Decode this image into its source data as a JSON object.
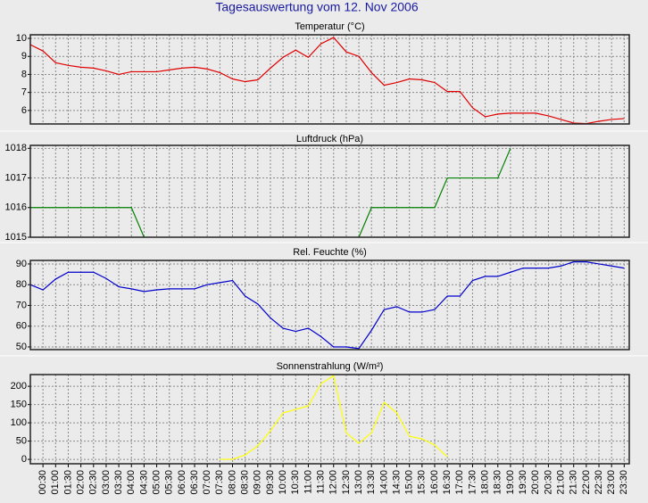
{
  "title": "Tagesauswertung vom 12. Nov 2006",
  "chart_data": [
    {
      "type": "line",
      "title": "Temperatur (°C)",
      "color": "#e00000",
      "grid": true,
      "x": [
        0,
        0.5,
        1,
        1.5,
        2,
        2.5,
        3,
        3.5,
        4,
        4.5,
        5,
        5.5,
        6,
        6.5,
        7,
        7.5,
        8,
        8.5,
        9,
        9.5,
        10,
        10.5,
        11,
        11.5,
        12,
        12.5,
        13,
        13.5,
        14,
        14.5,
        15,
        15.5,
        16,
        16.5,
        17,
        17.5,
        18,
        18.5,
        19,
        19.5,
        20,
        20.5,
        21,
        21.5,
        22,
        22.5,
        23,
        23.5
      ],
      "values": [
        9.65,
        9.3,
        8.65,
        8.5,
        8.4,
        8.35,
        8.2,
        8.0,
        8.15,
        8.15,
        8.15,
        8.25,
        8.35,
        8.4,
        8.3,
        8.1,
        7.75,
        7.6,
        7.7,
        8.35,
        8.95,
        9.35,
        8.95,
        9.7,
        10.05,
        9.25,
        9.0,
        8.1,
        7.4,
        7.55,
        7.75,
        7.7,
        7.55,
        7.05,
        7.05,
        6.15,
        5.65,
        5.8,
        5.85,
        5.85,
        5.85,
        5.7,
        5.5,
        5.3,
        5.27,
        5.4,
        5.5,
        5.55
      ],
      "xlim": [
        0,
        23.7
      ],
      "ylim": [
        5.25,
        10.2
      ],
      "yticks": [
        6,
        7,
        8,
        9,
        10
      ]
    },
    {
      "type": "line",
      "title": "Luftdruck (hPa)",
      "color": "#008000",
      "grid": true,
      "x": [
        0,
        0.5,
        1,
        1.5,
        2,
        2.5,
        3,
        3.5,
        4,
        4.5,
        5,
        5.5,
        6,
        6.5,
        7,
        7.5,
        8,
        8.5,
        9,
        9.5,
        10,
        10.5,
        11,
        11.5,
        12,
        12.5,
        13,
        13.5,
        14,
        14.5,
        15,
        15.5,
        16,
        16.5,
        17,
        17.5,
        18,
        18.5,
        19,
        19.5,
        20,
        20.5,
        21,
        21.5,
        22,
        22.5,
        23,
        23.5
      ],
      "values": [
        1016,
        1016,
        1016,
        1016,
        1016,
        1016,
        1016,
        1016,
        1016,
        1015,
        null,
        null,
        null,
        null,
        null,
        null,
        null,
        null,
        null,
        null,
        null,
        null,
        null,
        null,
        null,
        null,
        1015,
        1016,
        1016,
        1016,
        1016,
        1016,
        1016,
        1017,
        1017,
        1017,
        1017,
        1017,
        1018,
        null,
        null,
        null,
        null,
        null,
        null,
        null,
        null,
        null
      ],
      "xlim": [
        0,
        23.7
      ],
      "ylim": [
        1015,
        1018.1
      ],
      "yticks": [
        1015,
        1016,
        1017,
        1018
      ]
    },
    {
      "type": "line",
      "title": "Rel. Feuchte (%)",
      "color": "#0000cc",
      "grid": true,
      "x": [
        0,
        0.5,
        1,
        1.5,
        2,
        2.5,
        3,
        3.5,
        4,
        4.5,
        5,
        5.5,
        6,
        6.5,
        7,
        7.5,
        8,
        8.5,
        9,
        9.5,
        10,
        10.5,
        11,
        11.5,
        12,
        12.5,
        13,
        13.5,
        14,
        14.5,
        15,
        15.5,
        16,
        16.5,
        17,
        17.5,
        18,
        18.5,
        19,
        19.5,
        20,
        20.5,
        21,
        21.5,
        22,
        22.5,
        23,
        23.5
      ],
      "values": [
        80,
        77.5,
        82.7,
        86,
        86,
        86,
        83,
        79,
        78,
        76.7,
        77.5,
        78,
        78,
        78,
        80,
        81,
        82,
        74.5,
        70.7,
        64,
        59,
        57.5,
        59,
        55,
        50,
        50,
        49.2,
        58,
        68,
        69.4,
        66.8,
        66.8,
        68,
        74.5,
        74.5,
        82,
        84,
        84,
        86,
        88,
        88,
        88,
        89,
        91,
        91,
        90,
        89,
        88
      ],
      "xlim": [
        0,
        23.7
      ],
      "ylim": [
        48.7,
        91.7
      ],
      "yticks": [
        50,
        60,
        70,
        80,
        90
      ]
    },
    {
      "type": "line",
      "title": "Sonnenstrahlung (W/m²)",
      "color": "#ffff00",
      "grid": true,
      "x": [
        0,
        0.5,
        1,
        1.5,
        2,
        2.5,
        3,
        3.5,
        4,
        4.5,
        5,
        5.5,
        6,
        6.5,
        7,
        7.5,
        8,
        8.5,
        9,
        9.5,
        10,
        10.5,
        11,
        11.5,
        12,
        12.5,
        13,
        13.5,
        14,
        14.5,
        15,
        15.5,
        16,
        16.5,
        17,
        17.5,
        18,
        18.5,
        19,
        19.5,
        20,
        20.5,
        21,
        21.5,
        22,
        22.5,
        23,
        23.5
      ],
      "values": [
        null,
        null,
        null,
        null,
        null,
        null,
        null,
        null,
        null,
        null,
        null,
        null,
        null,
        null,
        null,
        0,
        0,
        12,
        37,
        78,
        127,
        137,
        146,
        207,
        229,
        73,
        44,
        73,
        156,
        127,
        63,
        56,
        39,
        7,
        null,
        null,
        null,
        null,
        null,
        null,
        null,
        null,
        null,
        null,
        null,
        null,
        null,
        null
      ],
      "xlim": [
        0,
        23.7
      ],
      "ylim": [
        -12,
        232
      ],
      "yticks": [
        0,
        50,
        100,
        150,
        200
      ],
      "xticks": [
        {
          "value": 0.5,
          "label": "00:30"
        },
        {
          "value": 1,
          "label": "01:00"
        },
        {
          "value": 1.5,
          "label": "01:30"
        },
        {
          "value": 2,
          "label": "02:00"
        },
        {
          "value": 2.5,
          "label": "02:30"
        },
        {
          "value": 3,
          "label": "03:00"
        },
        {
          "value": 3.5,
          "label": "03:30"
        },
        {
          "value": 4,
          "label": "04:00"
        },
        {
          "value": 4.5,
          "label": "04:30"
        },
        {
          "value": 5,
          "label": "05:00"
        },
        {
          "value": 5.5,
          "label": "05:30"
        },
        {
          "value": 6,
          "label": "06:00"
        },
        {
          "value": 6.5,
          "label": "06:30"
        },
        {
          "value": 7,
          "label": "07:00"
        },
        {
          "value": 7.5,
          "label": "07:30"
        },
        {
          "value": 8,
          "label": "08:00"
        },
        {
          "value": 8.5,
          "label": "08:30"
        },
        {
          "value": 9,
          "label": "09:00"
        },
        {
          "value": 9.5,
          "label": "09:30"
        },
        {
          "value": 10,
          "label": "10:00"
        },
        {
          "value": 10.5,
          "label": "10:30"
        },
        {
          "value": 11,
          "label": "11:00"
        },
        {
          "value": 11.5,
          "label": "11:30"
        },
        {
          "value": 12,
          "label": "12:00"
        },
        {
          "value": 12.5,
          "label": "12:30"
        },
        {
          "value": 13,
          "label": "13:00"
        },
        {
          "value": 13.5,
          "label": "13:30"
        },
        {
          "value": 14,
          "label": "14:00"
        },
        {
          "value": 14.5,
          "label": "14:30"
        },
        {
          "value": 15,
          "label": "15:00"
        },
        {
          "value": 15.5,
          "label": "15:30"
        },
        {
          "value": 16,
          "label": "16:00"
        },
        {
          "value": 16.5,
          "label": "16:30"
        },
        {
          "value": 17,
          "label": "17:00"
        },
        {
          "value": 17.5,
          "label": "17:30"
        },
        {
          "value": 18,
          "label": "18:00"
        },
        {
          "value": 18.5,
          "label": "18:30"
        },
        {
          "value": 19,
          "label": "19:00"
        },
        {
          "value": 19.5,
          "label": "19:30"
        },
        {
          "value": 20,
          "label": "20:00"
        },
        {
          "value": 20.5,
          "label": "20:30"
        },
        {
          "value": 21,
          "label": "21:00"
        },
        {
          "value": 21.5,
          "label": "21:30"
        },
        {
          "value": 22,
          "label": "22:00"
        },
        {
          "value": 22.5,
          "label": "22:30"
        },
        {
          "value": 23,
          "label": "23:00"
        },
        {
          "value": 23.5,
          "label": "23:30"
        }
      ]
    }
  ]
}
